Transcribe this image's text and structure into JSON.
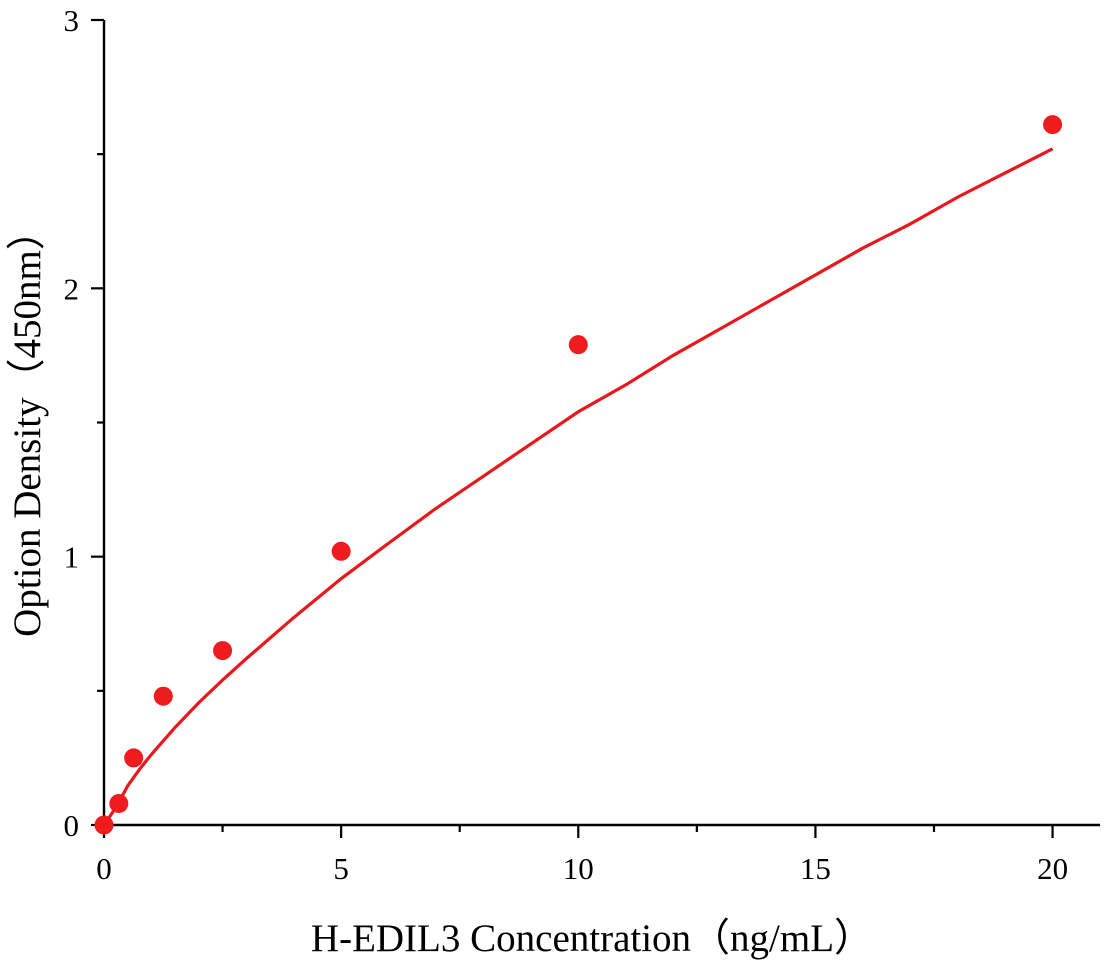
{
  "chart_data": {
    "type": "scatter",
    "title": "",
    "xlabel": "H-EDIL3 Concentration（ng/mL）",
    "ylabel": "Option Density（450nm）",
    "xlim": [
      0,
      21
    ],
    "ylim": [
      0,
      3
    ],
    "x_ticks": [
      0,
      5,
      10,
      15,
      20
    ],
    "y_ticks": [
      0,
      1,
      2,
      3
    ],
    "x_minor_ticks": [
      2.5,
      7.5,
      12.5,
      17.5
    ],
    "y_minor_ticks": [
      0.5,
      1.5,
      2.5
    ],
    "grid": false,
    "legend": "none",
    "series": [
      {
        "type": "scatter",
        "x": [
          0,
          0.3125,
          0.625,
          1.25,
          2.5,
          5,
          10,
          20
        ],
        "y": [
          0.0,
          0.08,
          0.25,
          0.48,
          0.65,
          1.02,
          1.79,
          2.61
        ],
        "color": "#ee1c1c"
      },
      {
        "type": "line",
        "x": [
          0,
          0.25,
          0.5,
          0.75,
          1,
          1.5,
          2,
          2.5,
          3,
          4,
          5,
          6,
          7,
          8,
          9,
          10,
          11,
          12,
          13,
          14,
          15,
          16,
          17,
          18,
          19,
          20
        ],
        "y": [
          0.0,
          0.065,
          0.146,
          0.208,
          0.263,
          0.364,
          0.456,
          0.54,
          0.62,
          0.773,
          0.918,
          1.05,
          1.18,
          1.3,
          1.42,
          1.54,
          1.64,
          1.75,
          1.85,
          1.95,
          2.05,
          2.15,
          2.24,
          2.34,
          2.43,
          2.52
        ],
        "color": "#e8181c"
      }
    ]
  }
}
